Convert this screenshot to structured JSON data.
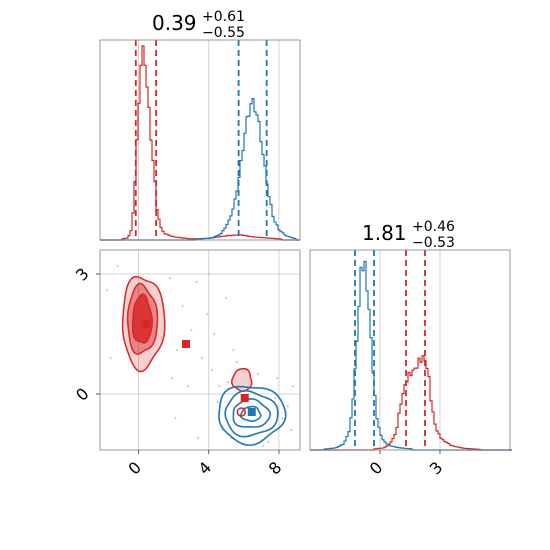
{
  "chart_data": {
    "type": "corner",
    "colors": {
      "series_red": "#d62728",
      "series_blue": "#1f77b4",
      "grid": "#c8c8c8",
      "frame": "#808080"
    },
    "param1": {
      "title": {
        "main": "0.39",
        "sup": "+0.61",
        "sub": "−0.55"
      },
      "xlim": [
        -2.2,
        9.2
      ],
      "ticks": [
        0,
        4,
        8
      ],
      "tick_labels": [
        "0",
        "4",
        "8"
      ],
      "quantiles": {
        "red": [
          -0.16,
          1.0
        ],
        "blue": [
          5.7,
          7.3
        ]
      },
      "hist_red": [
        [
          -1.0,
          0.004
        ],
        [
          -0.6,
          0.01
        ],
        [
          -0.4,
          0.05
        ],
        [
          -0.25,
          0.2
        ],
        [
          -0.1,
          0.45
        ],
        [
          0.05,
          0.72
        ],
        [
          0.2,
          0.9
        ],
        [
          0.35,
          0.88
        ],
        [
          0.5,
          0.7
        ],
        [
          0.7,
          0.5
        ],
        [
          0.9,
          0.3
        ],
        [
          1.05,
          0.15
        ],
        [
          1.25,
          0.06
        ],
        [
          1.5,
          0.03
        ],
        [
          2.0,
          0.015
        ],
        [
          3.0,
          0.005
        ],
        [
          4.0,
          0.008
        ],
        [
          5.0,
          0.02
        ],
        [
          5.8,
          0.025
        ],
        [
          6.5,
          0.015
        ],
        [
          7.3,
          0.01
        ],
        [
          8.2,
          0.004
        ]
      ],
      "hist_blue": [
        [
          3.3,
          0.004
        ],
        [
          4.2,
          0.01
        ],
        [
          4.7,
          0.03
        ],
        [
          5.1,
          0.08
        ],
        [
          5.4,
          0.15
        ],
        [
          5.7,
          0.28
        ],
        [
          5.95,
          0.44
        ],
        [
          6.2,
          0.58
        ],
        [
          6.45,
          0.66
        ],
        [
          6.7,
          0.62
        ],
        [
          6.95,
          0.5
        ],
        [
          7.2,
          0.34
        ],
        [
          7.45,
          0.2
        ],
        [
          7.7,
          0.1
        ],
        [
          8.0,
          0.05
        ],
        [
          8.4,
          0.02
        ],
        [
          9.0,
          0.005
        ]
      ],
      "hist_ymax": 0.95
    },
    "param2": {
      "title": {
        "main": "1.81",
        "sup": "+0.46",
        "sub": "−0.53"
      },
      "xlim": [
        -3.5,
        6.5
      ],
      "ticks": [
        0,
        3
      ],
      "tick_labels": [
        "0",
        "3"
      ],
      "quantiles": {
        "blue": [
          -1.25,
          -0.3
        ],
        "red": [
          1.3,
          2.25
        ]
      },
      "hist_blue": [
        [
          -2.8,
          0.004
        ],
        [
          -2.2,
          0.01
        ],
        [
          -1.8,
          0.03
        ],
        [
          -1.5,
          0.1
        ],
        [
          -1.3,
          0.3
        ],
        [
          -1.1,
          0.6
        ],
        [
          -0.95,
          0.85
        ],
        [
          -0.8,
          0.9
        ],
        [
          -0.65,
          0.78
        ],
        [
          -0.5,
          0.6
        ],
        [
          -0.35,
          0.38
        ],
        [
          -0.2,
          0.18
        ],
        [
          0.0,
          0.08
        ],
        [
          0.2,
          0.04
        ],
        [
          0.5,
          0.02
        ],
        [
          1.0,
          0.01
        ],
        [
          1.6,
          0.005
        ]
      ],
      "hist_red": [
        [
          -0.3,
          0.005
        ],
        [
          0.2,
          0.01
        ],
        [
          0.5,
          0.03
        ],
        [
          0.8,
          0.08
        ],
        [
          1.0,
          0.2
        ],
        [
          1.2,
          0.29
        ],
        [
          1.4,
          0.35
        ],
        [
          1.6,
          0.37
        ],
        [
          1.8,
          0.39
        ],
        [
          2.0,
          0.43
        ],
        [
          2.2,
          0.44
        ],
        [
          2.4,
          0.38
        ],
        [
          2.6,
          0.2
        ],
        [
          2.8,
          0.1
        ],
        [
          3.1,
          0.05
        ],
        [
          3.6,
          0.02
        ],
        [
          4.2,
          0.008
        ],
        [
          5.0,
          0.003
        ]
      ],
      "hist_ymax": 0.95
    },
    "joint": {
      "ylim": [
        -1.4,
        3.6
      ],
      "yticks": [
        0,
        3
      ],
      "ytick_labels": [
        "0",
        "3"
      ],
      "red_contours": [
        {
          "cx": 0.25,
          "cy": 1.8,
          "rx": 1.2,
          "ry": 1.15,
          "level": "outer"
        },
        {
          "cx": 0.2,
          "cy": 1.85,
          "rx": 0.85,
          "ry": 0.85,
          "level": "middle"
        },
        {
          "cx": 0.2,
          "cy": 1.85,
          "rx": 0.55,
          "ry": 0.6,
          "level": "inner"
        },
        {
          "cx": 5.9,
          "cy": 0.35,
          "rx": 0.55,
          "ry": 0.28,
          "level": "outer"
        }
      ],
      "blue_contours": [
        {
          "cx": 6.4,
          "cy": -0.5,
          "rx": 1.9,
          "ry": 0.72,
          "level": "outer"
        },
        {
          "cx": 6.4,
          "cy": -0.5,
          "rx": 1.5,
          "ry": 0.55,
          "level": "middle"
        },
        {
          "cx": 6.4,
          "cy": -0.5,
          "rx": 1.05,
          "ry": 0.35,
          "level": "inner"
        },
        {
          "cx": 6.4,
          "cy": -0.5,
          "rx": 0.55,
          "ry": 0.18,
          "level": "core"
        }
      ],
      "markers": [
        {
          "x": 0.4,
          "y": 1.75,
          "shape": "square",
          "color": "red"
        },
        {
          "x": 2.7,
          "y": 1.25,
          "shape": "square",
          "color": "red"
        },
        {
          "x": 6.05,
          "y": -0.1,
          "shape": "square",
          "color": "red"
        },
        {
          "x": 6.45,
          "y": -0.45,
          "shape": "square",
          "color": "blue"
        },
        {
          "x": 5.85,
          "y": -0.45,
          "shape": "circle",
          "color": "red"
        }
      ],
      "scatter_blue": [
        [
          4.5,
          -0.2
        ],
        [
          4.8,
          -0.9
        ],
        [
          5.1,
          0.3
        ],
        [
          7.8,
          -0.1
        ],
        [
          8.2,
          -0.6
        ],
        [
          8.7,
          -0.9
        ],
        [
          5.3,
          -1.1
        ],
        [
          7.4,
          -1.2
        ],
        [
          4.2,
          0.6
        ],
        [
          8.8,
          0.2
        ],
        [
          6.8,
          0.5
        ],
        [
          5.6,
          0.8
        ],
        [
          7.1,
          -1.3
        ],
        [
          4.6,
          -0.5
        ],
        [
          8.5,
          -0.3
        ],
        [
          6.0,
          -1.25
        ],
        [
          7.9,
          0.4
        ]
      ],
      "scatter_red": [
        [
          2.2,
          1.1
        ],
        [
          3.0,
          1.6
        ],
        [
          2.5,
          2.2
        ],
        [
          4.0,
          3.0
        ],
        [
          3.6,
          0.9
        ],
        [
          1.9,
          0.4
        ],
        [
          2.8,
          0.2
        ],
        [
          4.3,
          1.5
        ],
        [
          5.0,
          2.4
        ],
        [
          3.3,
          2.8
        ],
        [
          4.6,
          0.2
        ],
        [
          1.8,
          2.9
        ],
        [
          -1.6,
          0.9
        ],
        [
          -1.8,
          2.6
        ],
        [
          3.9,
          2.0
        ],
        [
          2.1,
          -0.6
        ],
        [
          5.4,
          1.1
        ],
        [
          -1.2,
          3.2
        ],
        [
          4.8,
          -0.8
        ],
        [
          3.4,
          -1.1
        ]
      ]
    }
  }
}
